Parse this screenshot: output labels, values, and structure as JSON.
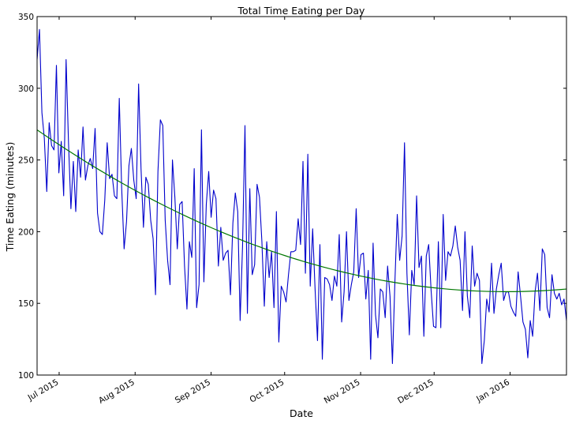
{
  "chart_data": {
    "type": "line",
    "title": "Total Time Eating per Day",
    "xlabel": "Date",
    "ylabel": "Time Eating (minutes)",
    "x_start": "2015-06-22",
    "x_end": "2016-01-24",
    "xlim": [
      "2015-06-22",
      "2016-01-24"
    ],
    "ylim": [
      100,
      350
    ],
    "yticks": [
      100,
      150,
      200,
      250,
      300,
      350
    ],
    "xticks": [
      {
        "date": "2015-07-01",
        "label": "Jul 2015"
      },
      {
        "date": "2015-08-01",
        "label": "Aug 2015"
      },
      {
        "date": "2015-09-01",
        "label": "Sep 2015"
      },
      {
        "date": "2015-10-01",
        "label": "Oct 2015"
      },
      {
        "date": "2015-11-01",
        "label": "Nov 2015"
      },
      {
        "date": "2015-12-01",
        "label": "Dec 2015"
      },
      {
        "date": "2016-01-01",
        "label": "Jan 2016"
      }
    ],
    "series": [
      {
        "color": "#0000cc",
        "values": [
          320,
          341,
          283,
          265,
          228,
          276,
          260,
          257,
          316,
          241,
          263,
          225,
          320,
          262,
          216,
          249,
          214,
          257,
          238,
          273,
          236,
          246,
          251,
          244,
          272,
          213,
          200,
          198,
          222,
          262,
          237,
          240,
          225,
          223,
          293,
          230,
          188,
          207,
          246,
          258,
          236,
          223,
          303,
          244,
          203,
          238,
          233,
          208,
          195,
          156,
          242,
          278,
          274,
          208,
          180,
          163,
          250,
          224,
          188,
          219,
          221,
          176,
          146,
          193,
          182,
          244,
          147,
          163,
          271,
          165,
          219,
          242,
          210,
          229,
          223,
          176,
          203,
          180,
          185,
          187,
          156,
          206,
          227,
          214,
          138,
          190,
          274,
          143,
          230,
          170,
          177,
          233,
          224,
          193,
          148,
          193,
          168,
          186,
          147,
          214,
          123,
          162,
          158,
          151,
          170,
          186,
          186,
          187,
          209,
          191,
          249,
          171,
          254,
          162,
          202,
          160,
          124,
          191,
          111,
          168,
          167,
          163,
          152,
          169,
          162,
          198,
          137,
          158,
          200,
          152,
          163,
          172,
          216,
          168,
          184,
          185,
          153,
          173,
          111,
          192,
          142,
          126,
          160,
          158,
          140,
          176,
          155,
          108,
          164,
          212,
          180,
          197,
          262,
          171,
          128,
          173,
          163,
          225,
          175,
          183,
          127,
          183,
          191,
          159,
          134,
          133,
          193,
          133,
          212,
          166,
          186,
          183,
          190,
          204,
          189,
          180,
          145,
          200,
          155,
          140,
          190,
          162,
          171,
          166,
          108,
          124,
          153,
          144,
          178,
          143,
          160,
          170,
          178,
          152,
          158,
          158,
          148,
          144,
          141,
          172,
          155,
          137,
          132,
          112,
          138,
          127,
          158,
          171,
          145,
          188,
          184,
          147,
          140,
          170,
          157,
          153,
          157,
          149,
          153,
          138
        ]
      },
      {
        "color": "#007700",
        "type": "trend",
        "values": [
          271,
          159,
          160
        ]
      }
    ]
  }
}
